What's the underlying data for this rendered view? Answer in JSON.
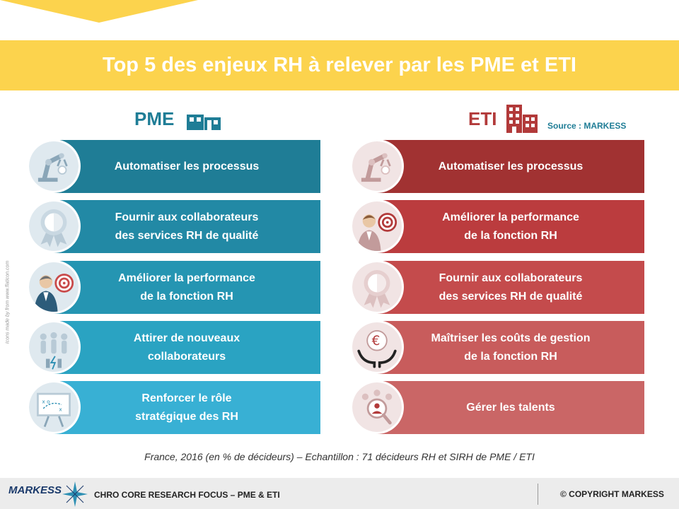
{
  "title": "Top 5 des enjeux RH à relever par les PME et ETI",
  "source": "Source : MARKESS",
  "icon_credit": "Icons made by from www.flaticon.com",
  "pme": {
    "heading": "PME",
    "items": [
      {
        "label": "Automatiser les processus",
        "icon": "robot-arm-icon",
        "color": "#1f7d96"
      },
      {
        "label": "Fournir aux collaborateurs\ndes services RH de qualité",
        "icon": "award-medal-icon",
        "color": "#2289a5"
      },
      {
        "label": "Améliorer la performance\nde la fonction RH",
        "icon": "businessman-target-icon",
        "color": "#2595b2"
      },
      {
        "label": "Attirer de nouveaux\ncollaborateurs",
        "icon": "people-magnet-icon",
        "color": "#2aa3c2"
      },
      {
        "label": "Renforcer le rôle\nstratégique des RH",
        "icon": "strategy-board-icon",
        "color": "#38b0d4"
      }
    ]
  },
  "eti": {
    "heading": "ETI",
    "items": [
      {
        "label": "Automatiser les processus",
        "icon": "robot-arm-icon",
        "color": "#a13232"
      },
      {
        "label": "Améliorer la performance\nde la fonction RH",
        "icon": "businessman-target-icon",
        "color": "#bb3c3e"
      },
      {
        "label": "Fournir aux collaborateurs\ndes services RH de qualité",
        "icon": "award-medal-icon",
        "color": "#c44b4c"
      },
      {
        "label": "Maîtriser les coûts de gestion\nde la fonction RH",
        "icon": "euro-hands-icon",
        "color": "#c85c5c"
      },
      {
        "label": "Gérer les talents",
        "icon": "talent-search-icon",
        "color": "#ca6666"
      }
    ]
  },
  "caption": "France, 2016 (en % de décideurs) – Echantillon : 71 décideurs RH et SIRH de PME / ETI",
  "footer": {
    "logo": "MARKESS",
    "focus": "CHRO CORE RESEARCH FOCUS – PME & ETI",
    "copyright": "© COPYRIGHT MARKESS"
  },
  "colors": {
    "banner": "#fcd34d",
    "pme_accent": "#1f7d96",
    "eti_accent": "#b23a3a"
  }
}
